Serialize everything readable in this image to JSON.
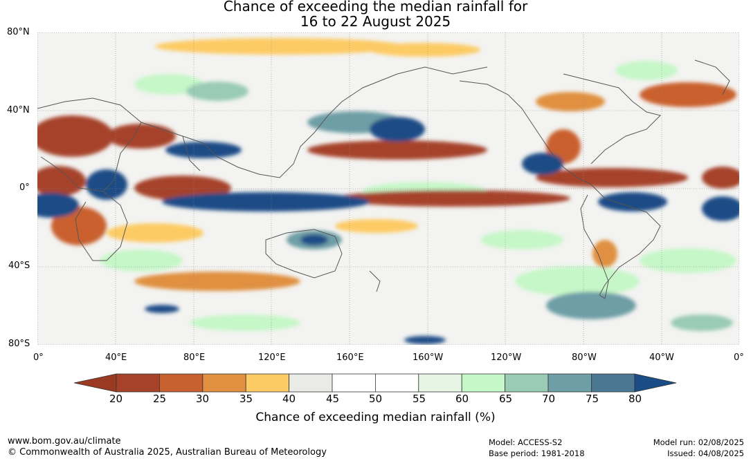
{
  "title": {
    "line1": "Chance of exceeding the median rainfall for",
    "line2": "16 to 22 August 2025"
  },
  "axes": {
    "lat_labels": [
      "80°N",
      "40°N",
      "0°",
      "40°S",
      "80°S"
    ],
    "lon_labels": [
      "0°",
      "40°E",
      "80°E",
      "120°E",
      "160°E",
      "160°W",
      "120°W",
      "80°W",
      "40°W",
      "0°"
    ]
  },
  "colorbar": {
    "title": "Chance of exceeding median rainfall (%)",
    "ticks": [
      "20",
      "25",
      "30",
      "35",
      "40",
      "45",
      "50",
      "55",
      "60",
      "65",
      "70",
      "75",
      "80"
    ],
    "colors": [
      "#a6422a",
      "#c9602f",
      "#e0903f",
      "#fdcb63",
      "#eaeae6",
      "#ffffff",
      "#ffffff",
      "#e7f5e5",
      "#c6f7c8",
      "#9acbb4",
      "#6e9ea6",
      "#4a7893"
    ],
    "low_color": "#9a3a22",
    "high_color": "#1a4c86"
  },
  "footer": {
    "url": "www.bom.gov.au/climate",
    "copyright": "© Commonwealth of Australia 2025, Australian Bureau of Meteorology",
    "model": "Model: ACCESS-S2",
    "base_period": "Base period: 1981-2018",
    "model_run": "Model run: 02/08/2025",
    "issued": "Issued: 04/08/2025"
  }
}
